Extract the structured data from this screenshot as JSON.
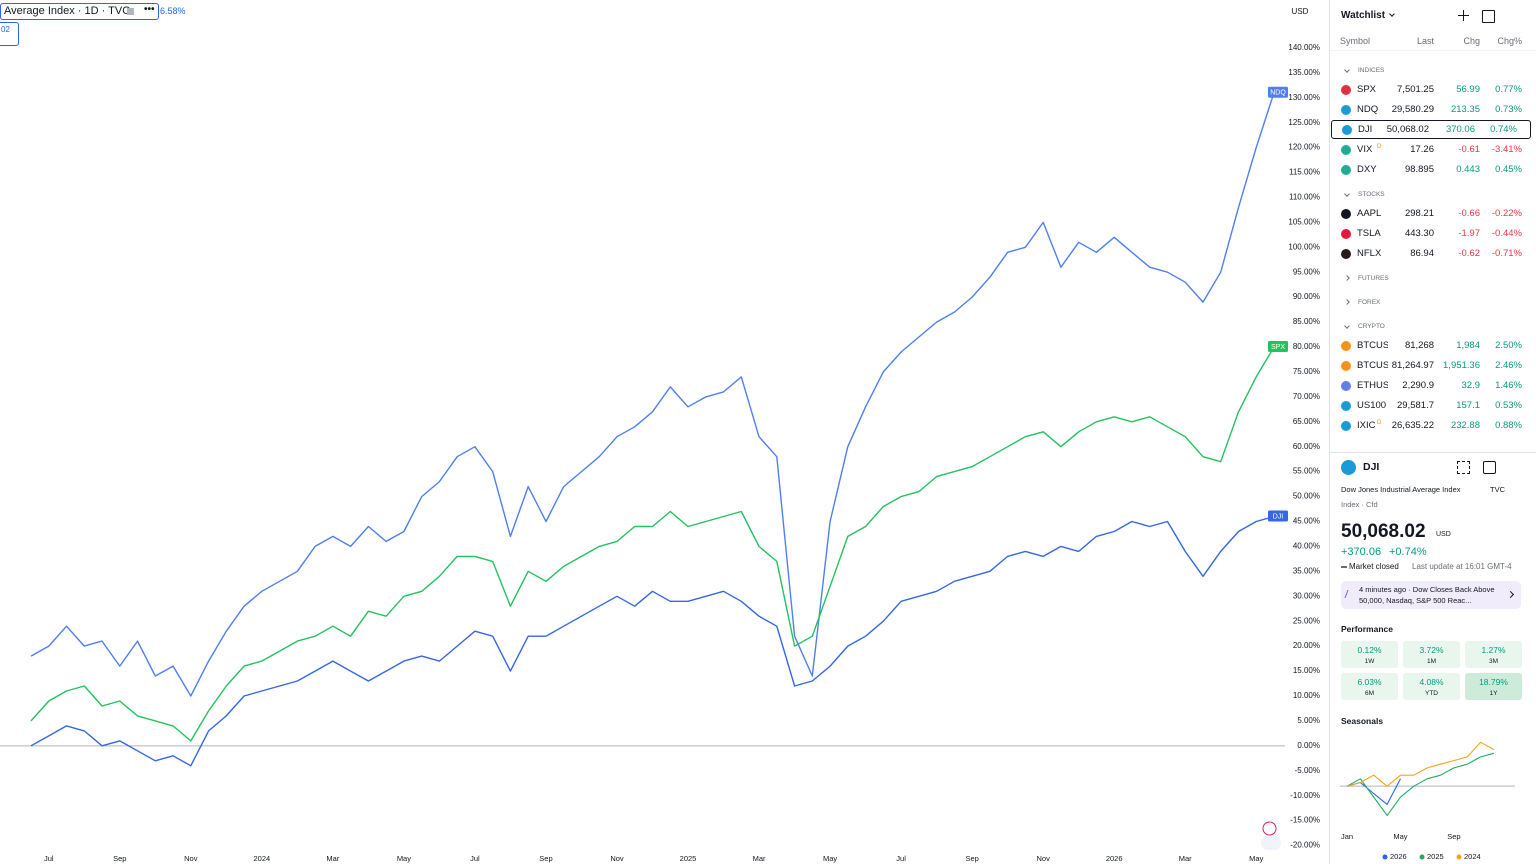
{
  "header": {
    "legend": "Average Index · 1D · TVC",
    "change": "6.58%",
    "value": "02",
    "currency": "USD"
  },
  "chart_data": [
    {
      "type": "line",
      "categories": [
        null,
        "Jul",
        null,
        null,
        null,
        "Sep",
        null,
        null,
        null,
        "Nov",
        null,
        null,
        null,
        "2024",
        null,
        null,
        null,
        "Mar",
        null,
        null,
        null,
        "May",
        null,
        null,
        null,
        "Jul",
        null,
        null,
        null,
        "Sep",
        null,
        null,
        null,
        "Nov",
        null,
        null,
        null,
        "2025",
        null,
        null,
        null,
        "Mar",
        null,
        null,
        null,
        "May",
        null,
        null,
        null,
        "Jul",
        null,
        null,
        null,
        "Sep",
        null,
        null,
        null,
        "Nov",
        null,
        null,
        null,
        "2026",
        null,
        null,
        null,
        "Mar",
        null,
        null,
        null,
        "May",
        null
      ],
      "series": [
        {
          "name": "NDQ",
          "color": "#4f7fef",
          "values": [
            18,
            20,
            24,
            20,
            21,
            16,
            21,
            14,
            16,
            10,
            17,
            23,
            28,
            31,
            33,
            35,
            40,
            42,
            40,
            44,
            41,
            43,
            50,
            53,
            58,
            60,
            55,
            42,
            52,
            45,
            52,
            55,
            58,
            62,
            64,
            67,
            72,
            68,
            70,
            71,
            74,
            62,
            58,
            22,
            14,
            45,
            60,
            68,
            75,
            79,
            82,
            85,
            87,
            90,
            94,
            99,
            100,
            105,
            96,
            101,
            99,
            102,
            99,
            96,
            95,
            93,
            89,
            95,
            108,
            120,
            131
          ]
        },
        {
          "name": "SPX",
          "color": "#22c35e",
          "values": [
            5,
            9,
            11,
            12,
            8,
            9,
            6,
            5,
            4,
            1,
            7,
            12,
            16,
            17,
            19,
            21,
            22,
            24,
            22,
            27,
            26,
            30,
            31,
            34,
            38,
            38,
            37,
            28,
            35,
            33,
            36,
            38,
            40,
            41,
            44,
            44,
            47,
            44,
            45,
            46,
            47,
            40,
            37,
            20,
            22,
            32,
            42,
            44,
            48,
            50,
            51,
            54,
            55,
            56,
            58,
            60,
            62,
            63,
            60,
            63,
            65,
            66,
            65,
            66,
            64,
            62,
            58,
            57,
            67,
            74,
            80
          ]
        },
        {
          "name": "DJI",
          "color": "#3566e6",
          "values": [
            0,
            2,
            4,
            3,
            0,
            1,
            -1,
            -3,
            -2,
            -4,
            3,
            6,
            10,
            11,
            12,
            13,
            15,
            17,
            15,
            13,
            15,
            17,
            18,
            17,
            20,
            23,
            22,
            15,
            22,
            22,
            24,
            26,
            28,
            30,
            28,
            31,
            29,
            29,
            30,
            31,
            29,
            26,
            24,
            12,
            13,
            16,
            20,
            22,
            25,
            29,
            30,
            31,
            33,
            34,
            35,
            38,
            39,
            38,
            40,
            39,
            42,
            43,
            45,
            44,
            45,
            39,
            34,
            39,
            43,
            45,
            46
          ]
        }
      ],
      "ylim": [
        -23.7,
        149.6
      ],
      "yticks": [
        {
          "value": -20,
          "label": "-20.00%"
        },
        {
          "value": -15,
          "label": "-15.00%"
        },
        {
          "value": -10,
          "label": "-10.00%"
        },
        {
          "value": -5,
          "label": "-5.00%"
        },
        {
          "value": 0,
          "label": "0.00%"
        },
        {
          "value": 5,
          "label": "5.00%"
        },
        {
          "value": 10,
          "label": "10.00%"
        },
        {
          "value": 15,
          "label": "15.00%"
        },
        {
          "value": 20,
          "label": "20.00%"
        },
        {
          "value": 25,
          "label": "25.00%"
        },
        {
          "value": 30,
          "label": "30.00%"
        },
        {
          "value": 35,
          "label": "35.00%"
        },
        {
          "value": 40,
          "label": "40.00%"
        },
        {
          "value": 45,
          "label": "45.00%"
        },
        {
          "value": 50,
          "label": "50.00%"
        },
        {
          "value": 55,
          "label": "55.00%"
        },
        {
          "value": 60,
          "label": "60.00%"
        },
        {
          "value": 65,
          "label": "65.00%"
        },
        {
          "value": 70,
          "label": "70.00%"
        },
        {
          "value": 75,
          "label": "75.00%"
        },
        {
          "value": 80,
          "label": "80.00%"
        },
        {
          "value": 85,
          "label": "85.00%"
        },
        {
          "value": 90,
          "label": "90.00%"
        },
        {
          "value": 95,
          "label": "95.00%"
        },
        {
          "value": 100,
          "label": "100.00%"
        },
        {
          "value": 105,
          "label": "105.00%"
        },
        {
          "value": 110,
          "label": "110.00%"
        },
        {
          "value": 115,
          "label": "115.00%"
        },
        {
          "value": 120,
          "label": "120.00%"
        },
        {
          "value": 125,
          "label": "125.00%"
        },
        {
          "value": 130,
          "label": "130.00%"
        },
        {
          "value": 135,
          "label": "135.00%"
        },
        {
          "value": 140,
          "label": "140.00%"
        }
      ],
      "grid": false
    },
    {
      "type": "line",
      "title": "Seasonals",
      "categories": [
        "Jan",
        null,
        null,
        null,
        "May",
        null,
        null,
        null,
        "Sep",
        null,
        null,
        null
      ],
      "series": [
        {
          "name": "2026",
          "color": "#2962ff",
          "values": [
            0,
            1,
            -2,
            -5,
            2,
            null,
            null,
            null,
            null,
            null,
            null,
            null
          ]
        },
        {
          "name": "2025",
          "color": "#22ab5e",
          "values": [
            0,
            2,
            -3,
            -8,
            -3,
            0,
            2,
            3,
            5,
            6,
            8,
            9
          ]
        },
        {
          "name": "2024",
          "color": "#f7a21b",
          "values": [
            0,
            1,
            3,
            0,
            3,
            3,
            5,
            6,
            7,
            8,
            12,
            10
          ]
        }
      ],
      "ylim": [
        -12,
        14
      ]
    }
  ],
  "watchlist": {
    "title": "Watchlist",
    "columns": [
      "Symbol",
      "Last",
      "Chg",
      "Chg%"
    ],
    "groups": [
      {
        "name": "INDICES",
        "rows": [
          {
            "symbol": "SPX",
            "last": "7,501.25",
            "chg": "56.99",
            "chgp": "0.77%",
            "icon": "#e0303f"
          },
          {
            "symbol": "NDQ",
            "last": "29,580.29",
            "chg": "213.35",
            "chgp": "0.73%",
            "icon": "#1a9bd7"
          },
          {
            "symbol": "DJI",
            "last": "50,068.02",
            "chg": "370.06",
            "chgp": "0.74%",
            "icon": "#1a9bd7",
            "selected": true
          },
          {
            "symbol": "VIX",
            "badge": "D",
            "last": "17.26",
            "chg": "-0.61",
            "chgp": "-3.41%",
            "icon": "#22ab94"
          },
          {
            "symbol": "DXY",
            "last": "98.895",
            "chg": "0.443",
            "chgp": "0.45%",
            "icon": "#22ab94"
          }
        ]
      },
      {
        "name": "STOCKS",
        "rows": [
          {
            "symbol": "AAPL",
            "last": "298.21",
            "chg": "-0.66",
            "chgp": "-0.22%",
            "icon": "#131722"
          },
          {
            "symbol": "TSLA",
            "last": "443.30",
            "chg": "-1.97",
            "chgp": "-0.44%",
            "icon": "#e31937"
          },
          {
            "symbol": "NFLX",
            "last": "86.94",
            "chg": "-0.62",
            "chgp": "-0.71%",
            "icon": "#2a1a1a"
          }
        ]
      },
      {
        "name": "FUTURES",
        "rows": []
      },
      {
        "name": "FOREX",
        "rows": []
      },
      {
        "name": "CRYPTO",
        "rows": [
          {
            "symbol": "BTCUSD",
            "last": "81,268",
            "chg": "1,984",
            "chgp": "2.50%",
            "icon": "#f7931a"
          },
          {
            "symbol": "BTCUSD",
            "last": "81,264.97",
            "chg": "1,951.36",
            "chgp": "2.46%",
            "icon": "#f7931a"
          },
          {
            "symbol": "ETHUSD",
            "last": "2,290.9",
            "chg": "32.9",
            "chgp": "1.46%",
            "icon": "#627eea"
          },
          {
            "symbol": "US100",
            "last": "29,581.7",
            "chg": "157.1",
            "chgp": "0.53%",
            "icon": "#1a9bd7"
          },
          {
            "symbol": "IXIC",
            "badge": "D",
            "last": "26,635.22",
            "chg": "232.88",
            "chgp": "0.88%",
            "icon": "#1a9bd7"
          }
        ]
      }
    ]
  },
  "details": {
    "symbol": "DJI",
    "name": "Dow Jones Industrial Average Index",
    "exchange": "TVC",
    "kind": "Index · Cfd",
    "price": "50,068.02",
    "currency": "USD",
    "change": "+370.06",
    "change_pct": "+0.74%",
    "status": "Market closed",
    "update": "Last update at 16:01 GMT-4",
    "news": {
      "time": "4 minutes ago",
      "headline": "Dow Closes Back Above 50,000, Nasdaq, S&P 500 Reac..."
    },
    "performance": {
      "title": "Performance",
      "cells": [
        {
          "value": "0.12%",
          "period": "1W"
        },
        {
          "value": "3.72%",
          "period": "1M"
        },
        {
          "value": "1.27%",
          "period": "3M"
        },
        {
          "value": "6.03%",
          "period": "6M"
        },
        {
          "value": "4.08%",
          "period": "YTD"
        },
        {
          "value": "18.79%",
          "period": "1Y"
        }
      ]
    }
  }
}
